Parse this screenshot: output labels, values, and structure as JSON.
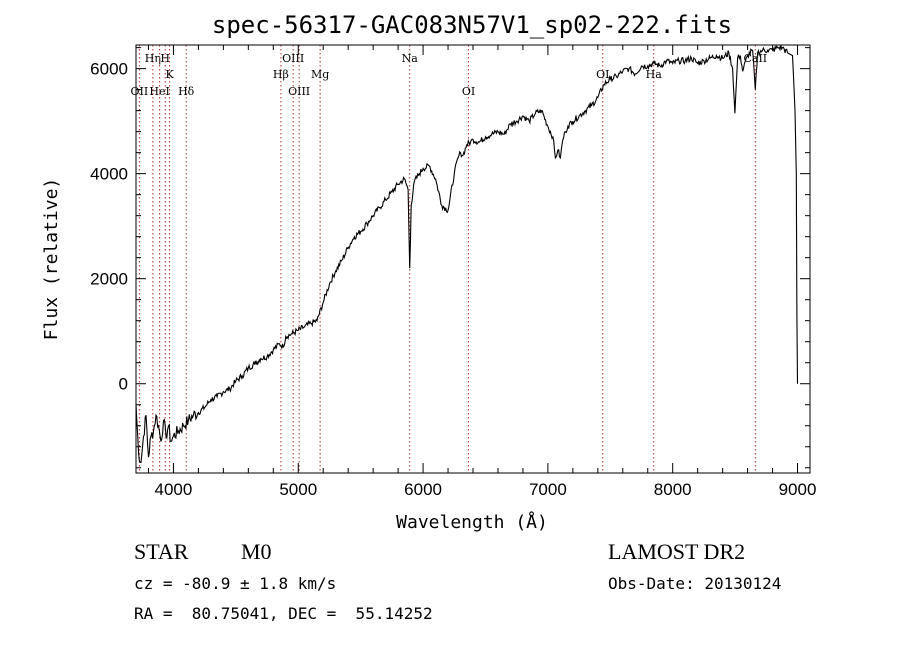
{
  "chart_data": {
    "type": "line",
    "title": "spec-56317-GAC083N57V1_sp02-222.fits",
    "xlabel": "Wavelength (Å)",
    "ylabel": "Flux (relative)",
    "xlim": [
      3700,
      9100
    ],
    "ylim": [
      -1700,
      6450
    ],
    "xticks": [
      4000,
      5000,
      6000,
      7000,
      8000,
      9000
    ],
    "yticks": [
      0,
      2000,
      4000,
      6000
    ],
    "grid": false,
    "legend": "none",
    "series": [
      {
        "color": "#000000",
        "x": [
          3700,
          3720,
          3740,
          3760,
          3780,
          3800,
          3820,
          3840,
          3860,
          3880,
          3900,
          3920,
          3940,
          3960,
          3980,
          4000,
          4040,
          4080,
          4120,
          4160,
          4200,
          4250,
          4300,
          4350,
          4400,
          4450,
          4500,
          4550,
          4600,
          4650,
          4700,
          4750,
          4800,
          4850,
          4880,
          4900,
          4950,
          5000,
          5050,
          5100,
          5150,
          5200,
          5250,
          5300,
          5350,
          5400,
          5450,
          5500,
          5550,
          5600,
          5650,
          5700,
          5750,
          5800,
          5850,
          5880,
          5893,
          5905,
          5930,
          5970,
          6000,
          6050,
          6100,
          6150,
          6200,
          6250,
          6280,
          6300,
          6320,
          6350,
          6380,
          6400,
          6450,
          6500,
          6550,
          6600,
          6650,
          6700,
          6750,
          6800,
          6850,
          6900,
          6950,
          7000,
          7040,
          7060,
          7080,
          7100,
          7120,
          7140,
          7160,
          7200,
          7250,
          7300,
          7350,
          7400,
          7450,
          7500,
          7550,
          7600,
          7650,
          7700,
          7750,
          7800,
          7850,
          7900,
          7950,
          8000,
          8050,
          8100,
          8150,
          8200,
          8250,
          8300,
          8350,
          8400,
          8450,
          8480,
          8498,
          8520,
          8542,
          8560,
          8600,
          8640,
          8662,
          8680,
          8720,
          8760,
          8800,
          8840,
          8880,
          8920,
          8960,
          8980,
          8990,
          8995,
          9000
        ],
        "y": [
          -400,
          -1300,
          -1500,
          -1000,
          -600,
          -1400,
          -1000,
          -900,
          -600,
          -800,
          -1100,
          -700,
          -1000,
          -800,
          -1100,
          -1000,
          -900,
          -800,
          -700,
          -600,
          -550,
          -450,
          -300,
          -250,
          -150,
          -100,
          50,
          150,
          300,
          380,
          480,
          520,
          650,
          760,
          700,
          900,
          950,
          1020,
          1080,
          1150,
          1200,
          1550,
          1900,
          2150,
          2350,
          2600,
          2800,
          2900,
          3050,
          3200,
          3350,
          3500,
          3650,
          3800,
          3900,
          3700,
          2200,
          3400,
          3850,
          4000,
          4100,
          4150,
          3900,
          3400,
          3300,
          4000,
          4300,
          4400,
          4350,
          4550,
          4600,
          4650,
          4600,
          4700,
          4750,
          4800,
          4750,
          4950,
          5000,
          5100,
          5000,
          5150,
          5200,
          4900,
          4700,
          4300,
          4450,
          4300,
          4650,
          4800,
          4900,
          5000,
          5100,
          5200,
          5300,
          5450,
          5700,
          5800,
          5850,
          5950,
          6000,
          5900,
          6050,
          6050,
          6100,
          6050,
          6150,
          6100,
          6150,
          6150,
          6200,
          6100,
          6150,
          6200,
          6250,
          6200,
          6300,
          6000,
          5150,
          6200,
          6250,
          5950,
          6250,
          6350,
          5600,
          6300,
          6350,
          6350,
          6350,
          6400,
          6400,
          6300,
          6250,
          5200,
          4000,
          1300,
          0
        ]
      }
    ],
    "lines": [
      {
        "label": "OII",
        "x": 3727,
        "row": "low"
      },
      {
        "label": "Hη",
        "x": 3835,
        "row": "top"
      },
      {
        "label": "HeI",
        "x": 3889,
        "row": "low"
      },
      {
        "label": "H",
        "x": 3934,
        "row": "top"
      },
      {
        "label": "K",
        "x": 3969,
        "row": "mid"
      },
      {
        "label": "Hδ",
        "x": 4102,
        "row": "low"
      },
      {
        "label": "Hβ",
        "x": 4861,
        "row": "mid"
      },
      {
        "label": "OIII",
        "x": 4959,
        "row": "top"
      },
      {
        "label": "OIII",
        "x": 5007,
        "row": "low"
      },
      {
        "label": "Mg",
        "x": 5175,
        "row": "mid"
      },
      {
        "label": "Na",
        "x": 5893,
        "row": "top"
      },
      {
        "label": "OI",
        "x": 6364,
        "row": "low"
      },
      {
        "label": "OI",
        "x": 7440,
        "row": "mid"
      },
      {
        "label": "Ha",
        "x": 7848,
        "row": "mid"
      },
      {
        "label": "CaII",
        "x": 8662,
        "row": "top"
      }
    ]
  },
  "info": {
    "class": "STAR",
    "subclass": "M0",
    "survey": "LAMOST DR2",
    "cz": "cz = -80.9 ± 1.8 km/s",
    "obs_date": "Obs-Date: 20130124",
    "coords": "RA =  80.75041, DEC =  55.14252"
  }
}
